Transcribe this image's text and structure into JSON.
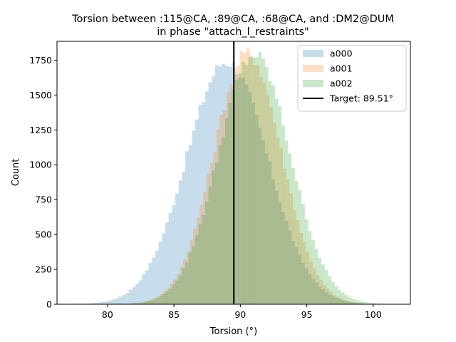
{
  "chart_data": {
    "type": "histogram",
    "title": "Torsion between :115@CA, :89@CA, :68@CA, and :DM2@DUM",
    "subtitle": "in phase \"attach_l_restraints\"",
    "xlabel": "Torsion (°)",
    "ylabel": "Count",
    "xlim": [
      76.2,
      102.8
    ],
    "ylim": [
      0,
      1885
    ],
    "xticks": [
      80,
      85,
      90,
      95,
      100
    ],
    "yticks": [
      0,
      250,
      500,
      750,
      1000,
      1250,
      1500,
      1750
    ],
    "bin_width": 0.25,
    "legend_position": "upper right",
    "target": {
      "label": "Target: 89.51°",
      "value": 89.51,
      "color": "#000000"
    },
    "series": [
      {
        "name": "a000",
        "color": "#1f77b4",
        "mean": 89.0,
        "sd": 3.05,
        "peak": 1740,
        "range": [
          77.6,
          99.2
        ]
      },
      {
        "name": "a001",
        "color": "#ff7f0e",
        "mean": 90.55,
        "sd": 2.55,
        "peak": 1800,
        "range": [
          80.7,
          100.3
        ]
      },
      {
        "name": "a002",
        "color": "#2ca02c",
        "mean": 91.05,
        "sd": 2.7,
        "peak": 1785,
        "range": [
          80.6,
          101.3
        ]
      }
    ],
    "alpha": 0.25
  }
}
